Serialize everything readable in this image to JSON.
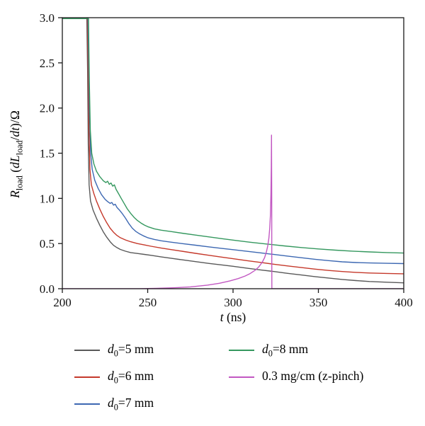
{
  "figure": {
    "background": "#ffffff",
    "frame_color": "#1a1a1a"
  },
  "axes": {
    "x_label_parts": {
      "v": "t",
      "rest": " (ns)"
    },
    "y_label_parts": {
      "r": "R",
      "rsub": "load",
      "p1": " (",
      "dl": "dL",
      "dlsub": "load",
      "p2": "/",
      "dt": "dt",
      "p3": ")/Ω"
    }
  },
  "legend": {
    "items": [
      {
        "id": "d0-5mm",
        "var": "d",
        "sub": "0",
        "rest": "=5 mm",
        "color": "#595959"
      },
      {
        "id": "d0-6mm",
        "var": "d",
        "sub": "0",
        "rest": "=6 mm",
        "color": "#c5392b"
      },
      {
        "id": "d0-7mm",
        "var": "d",
        "sub": "0",
        "rest": "=7 mm",
        "color": "#3d68b2"
      },
      {
        "id": "d0-8mm",
        "var": "d",
        "sub": "0",
        "rest": "=8 mm",
        "color": "#35985f"
      },
      {
        "id": "z-pinch",
        "var": "",
        "sub": "",
        "rest": "0.3 mg/cm (z-pinch)",
        "color": "#c258c2"
      }
    ]
  },
  "chart_data": {
    "type": "line",
    "title": "",
    "xlabel": "t (ns)",
    "ylabel": "R_load (dL_load/dt)/Ω",
    "xlim": [
      200,
      400
    ],
    "ylim": [
      0,
      3
    ],
    "grid": false,
    "legend_position": "below",
    "x_ticks": [
      {
        "v": 200,
        "label": "200"
      },
      {
        "v": 250,
        "label": "250"
      },
      {
        "v": 300,
        "label": "300"
      },
      {
        "v": 350,
        "label": "350"
      },
      {
        "v": 400,
        "label": "400"
      }
    ],
    "y_ticks": [
      {
        "v": 0.0,
        "label": "0.0"
      },
      {
        "v": 0.5,
        "label": "0.5"
      },
      {
        "v": 1.0,
        "label": "1.0"
      },
      {
        "v": 1.5,
        "label": "1.5"
      },
      {
        "v": 2.0,
        "label": "2.0"
      },
      {
        "v": 2.5,
        "label": "2.5"
      },
      {
        "v": 3.0,
        "label": "3.0"
      }
    ],
    "series": [
      {
        "id": "d0-5mm",
        "name": "d0=5 mm",
        "color": "#595959",
        "points": [
          [
            200,
            3.2
          ],
          [
            214.2,
            3.2
          ],
          [
            214.8,
            2.4
          ],
          [
            215.2,
            1.6
          ],
          [
            215.7,
            1.15
          ],
          [
            216.5,
            0.97
          ],
          [
            218,
            0.87
          ],
          [
            220,
            0.78
          ],
          [
            222,
            0.7
          ],
          [
            224,
            0.63
          ],
          [
            226,
            0.57
          ],
          [
            228,
            0.52
          ],
          [
            230,
            0.48
          ],
          [
            232,
            0.455
          ],
          [
            234,
            0.435
          ],
          [
            237,
            0.415
          ],
          [
            240,
            0.4
          ],
          [
            244,
            0.39
          ],
          [
            248,
            0.38
          ],
          [
            252,
            0.37
          ],
          [
            258,
            0.352
          ],
          [
            264,
            0.336
          ],
          [
            270,
            0.32
          ],
          [
            278,
            0.3
          ],
          [
            286,
            0.28
          ],
          [
            294,
            0.262
          ],
          [
            300,
            0.248
          ],
          [
            308,
            0.228
          ],
          [
            316,
            0.208
          ],
          [
            324,
            0.19
          ],
          [
            332,
            0.17
          ],
          [
            340,
            0.152
          ],
          [
            348,
            0.134
          ],
          [
            356,
            0.118
          ],
          [
            364,
            0.103
          ],
          [
            372,
            0.09
          ],
          [
            380,
            0.08
          ],
          [
            390,
            0.072
          ],
          [
            400,
            0.065
          ]
        ]
      },
      {
        "id": "d0-6mm",
        "name": "d0=6 mm",
        "color": "#c5392b",
        "points": [
          [
            200,
            3.2
          ],
          [
            214.5,
            3.2
          ],
          [
            215.1,
            2.5
          ],
          [
            215.6,
            1.75
          ],
          [
            216.2,
            1.32
          ],
          [
            217,
            1.15
          ],
          [
            218.5,
            1.05
          ],
          [
            220,
            0.97
          ],
          [
            222,
            0.88
          ],
          [
            224,
            0.8
          ],
          [
            226,
            0.73
          ],
          [
            228,
            0.67
          ],
          [
            230,
            0.625
          ],
          [
            232,
            0.59
          ],
          [
            234,
            0.565
          ],
          [
            237,
            0.54
          ],
          [
            240,
            0.52
          ],
          [
            244,
            0.5
          ],
          [
            248,
            0.485
          ],
          [
            252,
            0.47
          ],
          [
            258,
            0.45
          ],
          [
            264,
            0.432
          ],
          [
            270,
            0.415
          ],
          [
            278,
            0.392
          ],
          [
            286,
            0.37
          ],
          [
            294,
            0.348
          ],
          [
            300,
            0.332
          ],
          [
            308,
            0.311
          ],
          [
            316,
            0.291
          ],
          [
            324,
            0.271
          ],
          [
            332,
            0.252
          ],
          [
            340,
            0.234
          ],
          [
            348,
            0.217
          ],
          [
            356,
            0.202
          ],
          [
            364,
            0.19
          ],
          [
            372,
            0.181
          ],
          [
            380,
            0.174
          ],
          [
            390,
            0.169
          ],
          [
            400,
            0.165
          ]
        ]
      },
      {
        "id": "d0-7mm",
        "name": "d0=7 mm",
        "color": "#3d68b2",
        "points": [
          [
            200,
            3.2
          ],
          [
            214.8,
            3.2
          ],
          [
            215.4,
            2.6
          ],
          [
            215.9,
            1.95
          ],
          [
            216.6,
            1.5
          ],
          [
            217.5,
            1.32
          ],
          [
            219,
            1.2
          ],
          [
            221,
            1.11
          ],
          [
            223,
            1.04
          ],
          [
            225,
            0.99
          ],
          [
            226.5,
            0.965
          ],
          [
            228,
            0.945
          ],
          [
            229,
            0.955
          ],
          [
            230,
            0.925
          ],
          [
            231,
            0.935
          ],
          [
            232,
            0.9
          ],
          [
            233.5,
            0.87
          ],
          [
            235,
            0.835
          ],
          [
            237,
            0.78
          ],
          [
            239,
            0.72
          ],
          [
            241,
            0.67
          ],
          [
            243,
            0.635
          ],
          [
            245,
            0.61
          ],
          [
            247.5,
            0.585
          ],
          [
            250,
            0.565
          ],
          [
            254,
            0.545
          ],
          [
            258,
            0.53
          ],
          [
            264,
            0.515
          ],
          [
            270,
            0.5
          ],
          [
            278,
            0.482
          ],
          [
            286,
            0.463
          ],
          [
            294,
            0.445
          ],
          [
            300,
            0.432
          ],
          [
            308,
            0.414
          ],
          [
            316,
            0.397
          ],
          [
            324,
            0.379
          ],
          [
            332,
            0.361
          ],
          [
            340,
            0.343
          ],
          [
            348,
            0.326
          ],
          [
            356,
            0.311
          ],
          [
            364,
            0.298
          ],
          [
            372,
            0.29
          ],
          [
            380,
            0.285
          ],
          [
            390,
            0.281
          ],
          [
            400,
            0.278
          ]
        ]
      },
      {
        "id": "d0-8mm",
        "name": "d0=8 mm",
        "color": "#35985f",
        "points": [
          [
            200,
            2.99
          ],
          [
            215.3,
            2.99
          ],
          [
            215.8,
            2.3
          ],
          [
            216.4,
            1.75
          ],
          [
            217.2,
            1.5
          ],
          [
            218.5,
            1.38
          ],
          [
            220,
            1.3
          ],
          [
            222,
            1.24
          ],
          [
            224,
            1.195
          ],
          [
            225.5,
            1.175
          ],
          [
            226.5,
            1.19
          ],
          [
            227.5,
            1.155
          ],
          [
            228.5,
            1.17
          ],
          [
            229.5,
            1.135
          ],
          [
            230.5,
            1.15
          ],
          [
            231.5,
            1.1
          ],
          [
            233,
            1.05
          ],
          [
            234.5,
            1.0
          ],
          [
            236,
            0.95
          ],
          [
            238,
            0.885
          ],
          [
            240,
            0.835
          ],
          [
            242,
            0.79
          ],
          [
            244,
            0.755
          ],
          [
            246,
            0.728
          ],
          [
            248,
            0.705
          ],
          [
            250,
            0.687
          ],
          [
            254,
            0.663
          ],
          [
            258,
            0.648
          ],
          [
            264,
            0.632
          ],
          [
            270,
            0.615
          ],
          [
            278,
            0.594
          ],
          [
            286,
            0.573
          ],
          [
            294,
            0.553
          ],
          [
            300,
            0.538
          ],
          [
            310,
            0.515
          ],
          [
            320,
            0.494
          ],
          [
            330,
            0.474
          ],
          [
            340,
            0.456
          ],
          [
            350,
            0.44
          ],
          [
            360,
            0.427
          ],
          [
            370,
            0.416
          ],
          [
            380,
            0.407
          ],
          [
            390,
            0.4
          ],
          [
            400,
            0.395
          ]
        ]
      },
      {
        "id": "z-pinch",
        "name": "0.3 mg/cm (z-pinch)",
        "color": "#c258c2",
        "points": [
          [
            200,
            0
          ],
          [
            245,
            0
          ],
          [
            255,
            0.004
          ],
          [
            265,
            0.01
          ],
          [
            275,
            0.02
          ],
          [
            285,
            0.04
          ],
          [
            292,
            0.06
          ],
          [
            298,
            0.085
          ],
          [
            303,
            0.112
          ],
          [
            307,
            0.14
          ],
          [
            310,
            0.168
          ],
          [
            313,
            0.205
          ],
          [
            315,
            0.24
          ],
          [
            317,
            0.29
          ],
          [
            318.5,
            0.345
          ],
          [
            319.5,
            0.405
          ],
          [
            320.3,
            0.47
          ],
          [
            321,
            0.56
          ],
          [
            321.5,
            0.67
          ],
          [
            321.9,
            0.82
          ],
          [
            322.2,
            1.05
          ],
          [
            322.4,
            1.35
          ],
          [
            322.55,
            1.7
          ],
          [
            322.65,
            1.0
          ],
          [
            322.7,
            0.3
          ],
          [
            322.75,
            0
          ],
          [
            330,
            0
          ],
          [
            400,
            0
          ]
        ]
      }
    ]
  }
}
